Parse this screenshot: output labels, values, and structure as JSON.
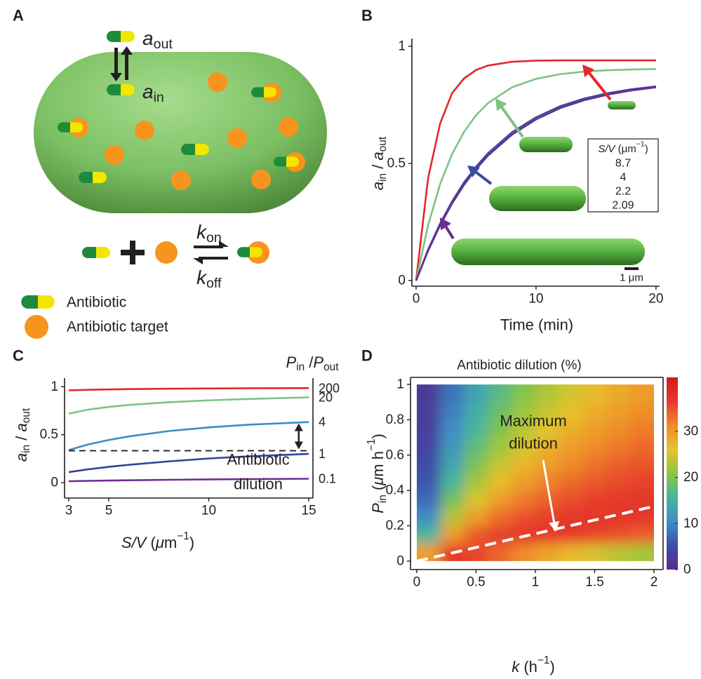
{
  "diagram": {
    "panel_label": "A",
    "a_out": [
      {
        "text": "a",
        "style": "italic"
      },
      {
        "text": "out",
        "style": "sub"
      }
    ],
    "a_in": [
      {
        "text": "a",
        "style": "italic"
      },
      {
        "text": "in",
        "style": "sub"
      }
    ],
    "k_on": [
      {
        "text": "k",
        "style": "italic"
      },
      {
        "text": "on",
        "style": "sub"
      }
    ],
    "k_off": [
      {
        "text": "k",
        "style": "italic"
      },
      {
        "text": "off",
        "style": "sub"
      }
    ],
    "legend": [
      "Antibiotic",
      "Antibiotic target"
    ]
  },
  "chart_data": [
    {
      "type": "line",
      "panel_label": "B",
      "x": [
        0,
        1,
        2,
        3,
        4,
        5,
        6,
        8,
        10,
        12,
        14,
        16,
        18,
        20
      ],
      "xlim": [
        -0.35,
        20.3
      ],
      "ylim": [
        -0.024,
        1.033
      ],
      "xticks": [
        0,
        10,
        20
      ],
      "yticks": [
        0,
        0.5,
        1
      ],
      "xlabel": "Time (min)",
      "ylabel": [
        {
          "text": "a",
          "style": "italic"
        },
        {
          "text": "in",
          "style": "sub"
        },
        {
          "text": " / "
        },
        {
          "text": "a",
          "style": "italic"
        },
        {
          "text": "out",
          "style": "sub"
        }
      ],
      "legend_title": [
        {
          "text": "S/V",
          "style": "italic"
        },
        {
          "text": " (μm"
        },
        {
          "text": "−1",
          "style": "sup"
        },
        {
          "text": ")"
        }
      ],
      "series": [
        {
          "name": "8.7",
          "color": "#e4262c",
          "values": [
            0,
            0.437,
            0.67,
            0.8,
            0.863,
            0.899,
            0.918,
            0.934,
            0.939,
            0.94,
            0.94,
            0.94,
            0.94,
            0.94
          ]
        },
        {
          "name": "4",
          "color": "#7dc383",
          "values": [
            0,
            0.236,
            0.412,
            0.54,
            0.635,
            0.706,
            0.758,
            0.825,
            0.861,
            0.881,
            0.892,
            0.898,
            0.901,
            0.903
          ]
        },
        {
          "name": "2.2",
          "color": "#3a4ba0",
          "values": [
            0,
            0.132,
            0.243,
            0.338,
            0.419,
            0.486,
            0.544,
            0.633,
            0.697,
            0.744,
            0.777,
            0.8,
            0.817,
            0.829
          ]
        },
        {
          "name": "2.09",
          "color": "#6a2d8f",
          "values": [
            0,
            0.127,
            0.236,
            0.329,
            0.409,
            0.476,
            0.534,
            0.623,
            0.688,
            0.736,
            0.77,
            0.794,
            0.812,
            0.825
          ]
        }
      ],
      "scale_bar": "1 μm"
    },
    {
      "type": "line",
      "panel_label": "C",
      "x": [
        3,
        4,
        5,
        6,
        8,
        10,
        12,
        15
      ],
      "xlim": [
        2.79,
        15.21
      ],
      "ylim": [
        -0.16,
        1.09
      ],
      "xticks": [
        3,
        5,
        10,
        15
      ],
      "yticks": [
        0,
        0.5,
        1
      ],
      "xlabel": [
        {
          "text": "S/V",
          "style": "italic"
        },
        {
          "text": " ("
        },
        {
          "text": "μ",
          "style": "italic"
        },
        {
          "text": "m"
        },
        {
          "text": "−1",
          "style": "sup"
        },
        {
          "text": ")"
        }
      ],
      "ylabel": [
        {
          "text": "a",
          "style": "italic"
        },
        {
          "text": "in",
          "style": "sub"
        },
        {
          "text": " / "
        },
        {
          "text": "a",
          "style": "italic"
        },
        {
          "text": "out",
          "style": "sub"
        }
      ],
      "legend_title": [
        {
          "text": "P",
          "style": "italic"
        },
        {
          "text": "in",
          "style": "sub"
        },
        {
          "text": " /"
        },
        {
          "text": "P",
          "style": "italic"
        },
        {
          "text": "out",
          "style": "sub"
        }
      ],
      "series": [
        {
          "name": "200",
          "color": "#e4262c",
          "values": [
            0.962,
            0.968,
            0.972,
            0.975,
            0.979,
            0.982,
            0.984,
            0.985
          ]
        },
        {
          "name": "20",
          "color": "#7dc383",
          "values": [
            0.72,
            0.762,
            0.79,
            0.81,
            0.838,
            0.858,
            0.872,
            0.889
          ]
        },
        {
          "name": "4",
          "color": "#3a8fc0",
          "values": [
            0.34,
            0.4,
            0.445,
            0.482,
            0.538,
            0.576,
            0.604,
            0.632
          ]
        },
        {
          "name": "1",
          "color": "#33429a",
          "values": [
            0.11,
            0.14,
            0.165,
            0.186,
            0.222,
            0.252,
            0.275,
            0.3
          ]
        },
        {
          "name": "0.1",
          "color": "#6f2c91",
          "values": [
            0.015,
            0.019,
            0.022,
            0.025,
            0.03,
            0.034,
            0.037,
            0.041
          ]
        }
      ],
      "reference_line": {
        "x": [
          3,
          15
        ],
        "y": [
          0.333,
          0.333
        ]
      },
      "annotation": [
        "Antibiotic",
        "dilution"
      ]
    },
    {
      "type": "heatmap",
      "panel_label": "D",
      "title": "Antibiotic dilution (%)",
      "xlabel": [
        {
          "text": "k",
          "style": "italic"
        },
        {
          "text": " (h"
        },
        {
          "text": "−1",
          "style": "sup"
        },
        {
          "text": ")"
        }
      ],
      "ylabel": [
        {
          "text": "P",
          "style": "italic"
        },
        {
          "text": "in",
          "style": "sub"
        },
        {
          "text": " ("
        },
        {
          "text": "μ",
          "style": "italic"
        },
        {
          "text": "m h"
        },
        {
          "text": "−1",
          "style": "sup"
        },
        {
          "text": ")"
        }
      ],
      "x": [
        0.1,
        0.3,
        0.5,
        0.7,
        0.9,
        1.1,
        1.3,
        1.5,
        1.7,
        1.9
      ],
      "y": [
        0.05,
        0.15,
        0.25,
        0.35,
        0.45,
        0.55,
        0.65,
        0.75,
        0.85,
        0.95
      ],
      "z": [
        [
          29.6,
          37,
          35.8,
          33.5,
          31.1,
          28.9,
          26.9,
          25.1,
          23.5,
          22.1
        ],
        [
          15.9,
          29.6,
          34.5,
          36.4,
          37,
          36.9,
          36.5,
          35.8,
          35.1,
          34.3
        ],
        [
          10.4,
          23.3,
          29.6,
          33.0,
          35.0,
          36.1,
          36.7,
          37,
          37,
          36.8
        ],
        [
          7.5,
          19.0,
          25.5,
          29.6,
          32.2,
          34.0,
          35.2,
          36.0,
          36.5,
          36.8
        ],
        [
          5.8,
          15.9,
          22.3,
          26.6,
          29.6,
          31.7,
          33.3,
          34.5,
          35.3,
          35.9
        ],
        [
          4.6,
          13.6,
          19.7,
          24.0,
          27.2,
          29.6,
          31.2,
          32.8,
          33.9,
          34.7
        ],
        [
          3.8,
          11.8,
          17.6,
          21.9,
          25.1,
          27.6,
          29.6,
          31.1,
          32.4,
          33.4
        ],
        [
          3.1,
          10.4,
          15.9,
          20.0,
          23.3,
          25.8,
          27.9,
          29.6,
          30.9,
          32.1
        ],
        [
          2.7,
          9.3,
          14.5,
          18.5,
          21.7,
          24.2,
          26.3,
          28.1,
          29.6,
          30.8
        ],
        [
          2.3,
          8.3,
          13.2,
          17.1,
          20.2,
          22.8,
          24.9,
          26.7,
          28.3,
          29.6
        ]
      ],
      "xlim": [
        -0.053,
        2.077
      ],
      "ylim": [
        -0.048,
        1.04
      ],
      "xticks": [
        0,
        0.5,
        1,
        1.5,
        2
      ],
      "yticks": [
        0,
        0.2,
        0.4,
        0.6,
        0.8,
        1
      ],
      "zlim": [
        0,
        41.7
      ],
      "zticks": [
        0,
        10,
        20,
        30
      ],
      "colorscale": [
        "#5b2a8c",
        "#3b4fa8",
        "#3f8fc5",
        "#45b5a0",
        "#8cc63f",
        "#e6c42c",
        "#f08a2a",
        "#e5392a",
        "#d7191c"
      ],
      "reference_line": {
        "x": [
          0,
          2
        ],
        "y": [
          0,
          0.31
        ]
      },
      "annotation": [
        "Maximum",
        "dilution"
      ]
    }
  ]
}
